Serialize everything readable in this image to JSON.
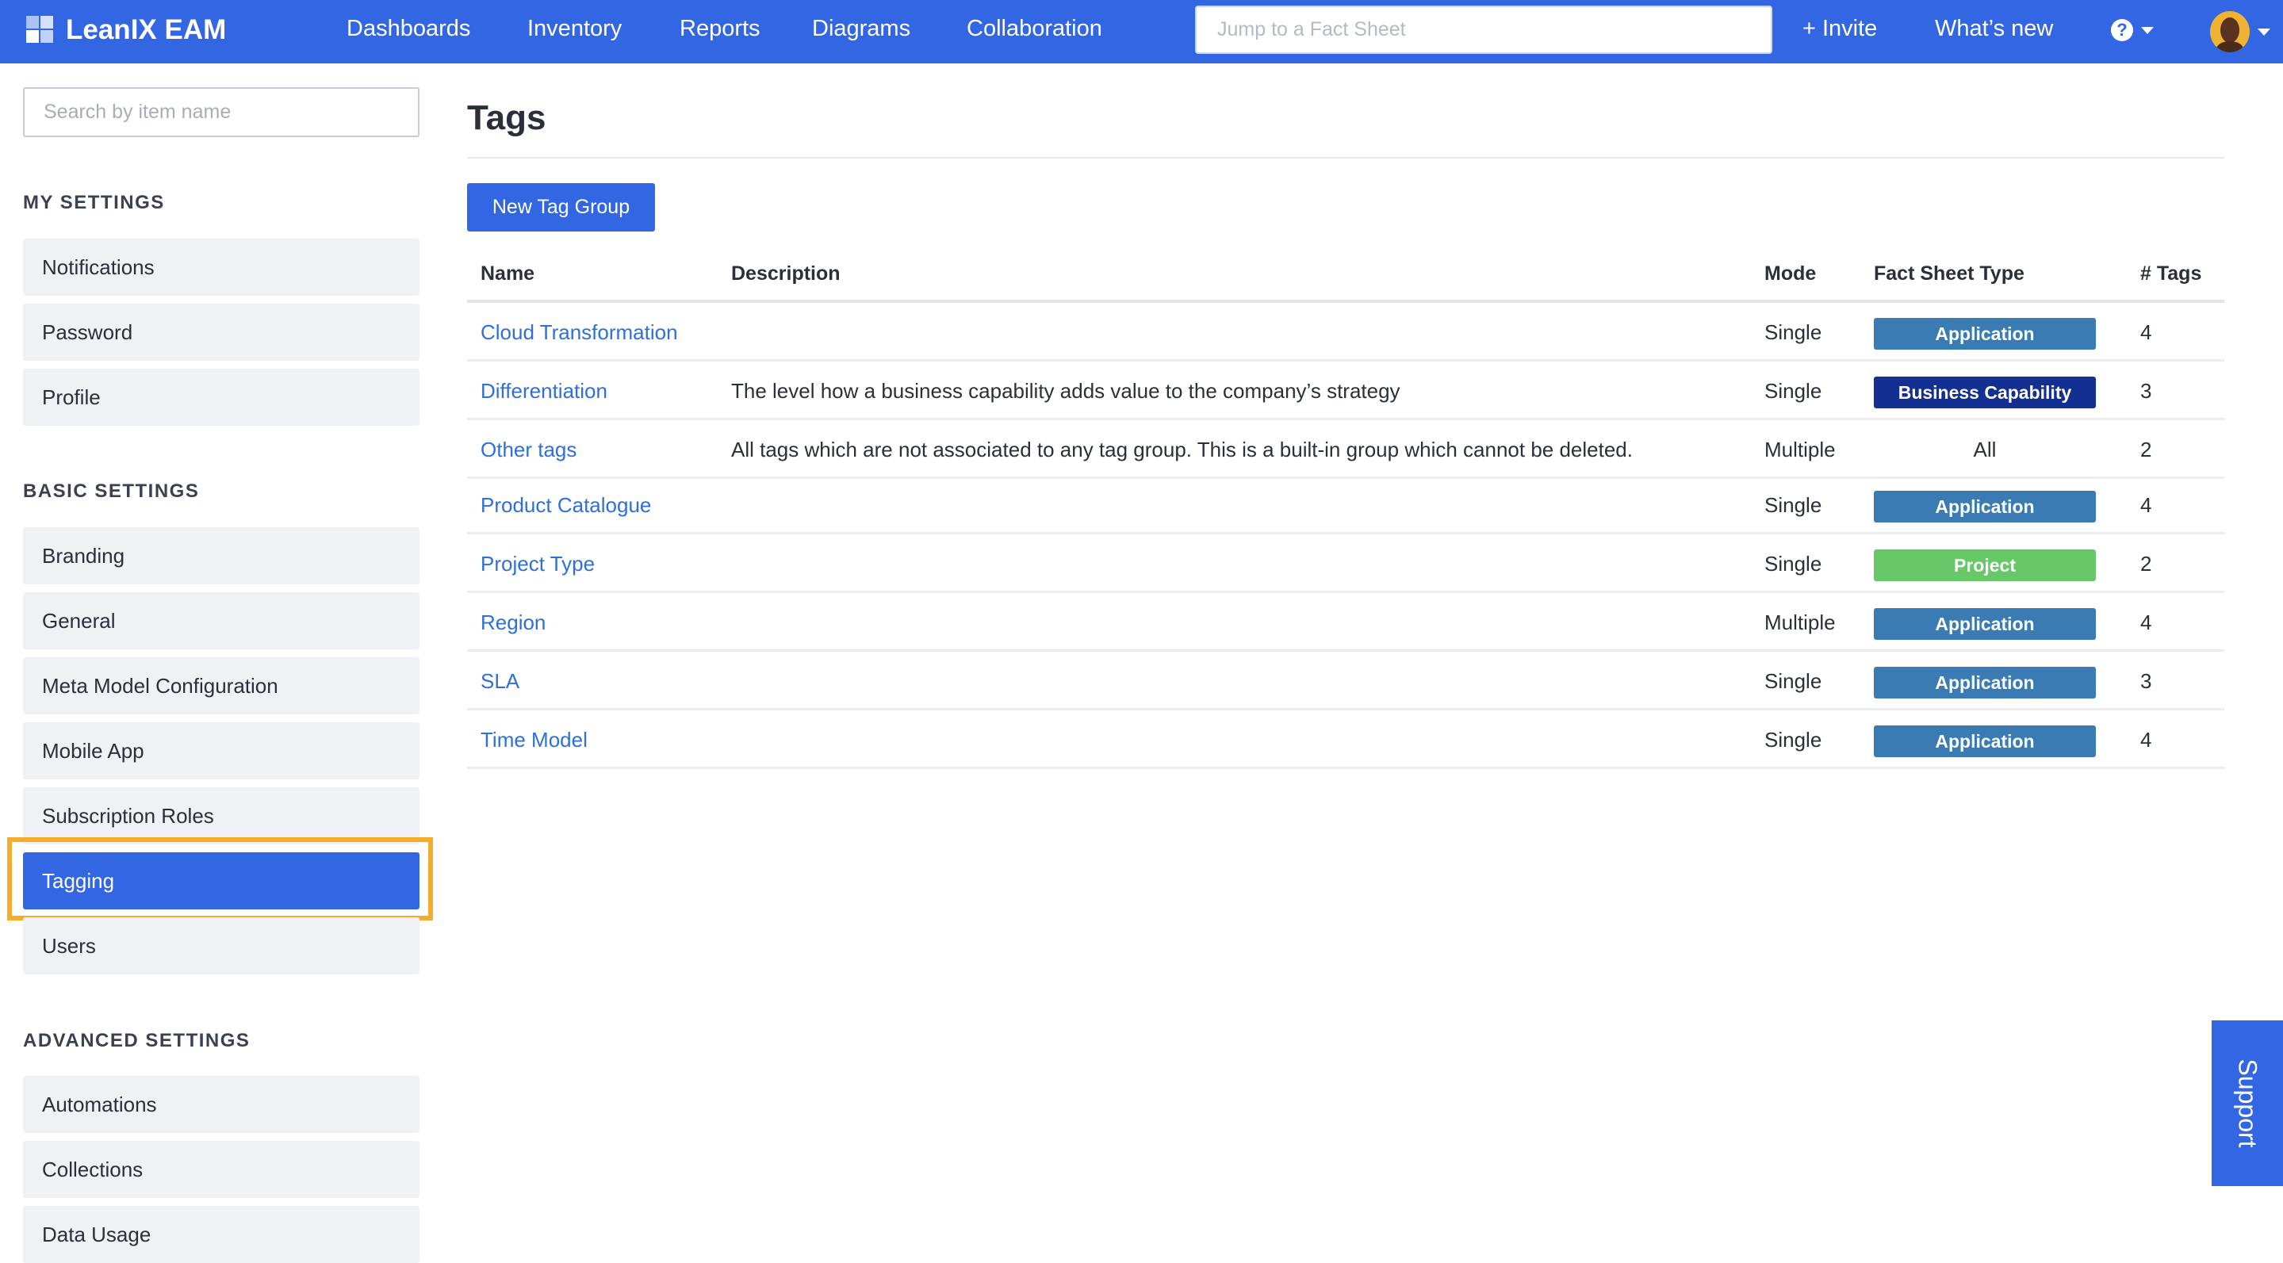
{
  "header": {
    "brand": "LeanIX EAM",
    "nav": [
      "Dashboards",
      "Inventory",
      "Reports",
      "Diagrams",
      "Collaboration"
    ],
    "jump_placeholder": "Jump to a Fact Sheet",
    "invite": "+ Invite",
    "whats_new": "What’s new",
    "help": "?"
  },
  "sidebar": {
    "search_placeholder": "Search by item name",
    "sections": [
      {
        "heading": "MY SETTINGS",
        "items": [
          "Notifications",
          "Password",
          "Profile"
        ]
      },
      {
        "heading": "BASIC SETTINGS",
        "items": [
          "Branding",
          "General",
          "Meta Model Configuration",
          "Mobile App",
          "Subscription Roles",
          "Tagging",
          "Users"
        ]
      },
      {
        "heading": "ADVANCED SETTINGS",
        "items": [
          "Automations",
          "Collections",
          "Data Usage"
        ]
      }
    ],
    "active": "Tagging"
  },
  "main": {
    "title": "Tags",
    "new_button": "New Tag Group",
    "columns": [
      "Name",
      "Description",
      "Mode",
      "Fact Sheet Type",
      "# Tags"
    ],
    "rows": [
      {
        "name": "Cloud Transformation",
        "description": "",
        "mode": "Single",
        "type": "Application",
        "count": "4"
      },
      {
        "name": "Differentiation",
        "description": "The level how a business capability adds value to the company’s strategy",
        "mode": "Single",
        "type": "Business Capability",
        "count": "3"
      },
      {
        "name": "Other tags",
        "description": "All tags which are not associated to any tag group. This is a built-in group which cannot be deleted.",
        "mode": "Multiple",
        "type": "All",
        "count": "2"
      },
      {
        "name": "Product Catalogue",
        "description": "",
        "mode": "Single",
        "type": "Application",
        "count": "4"
      },
      {
        "name": "Project Type",
        "description": "",
        "mode": "Single",
        "type": "Project",
        "count": "2"
      },
      {
        "name": "Region",
        "description": "",
        "mode": "Multiple",
        "type": "Application",
        "count": "4"
      },
      {
        "name": "SLA",
        "description": "",
        "mode": "Single",
        "type": "Application",
        "count": "3"
      },
      {
        "name": "Time Model",
        "description": "",
        "mode": "Single",
        "type": "Application",
        "count": "4"
      }
    ]
  },
  "type_colors": {
    "Application": "#3a7bb3",
    "Business Capability": "#132f91",
    "Project": "#66c866"
  },
  "colors": {
    "brand": "#3266e3",
    "highlight": "#f4ac2c"
  },
  "support": "Support"
}
